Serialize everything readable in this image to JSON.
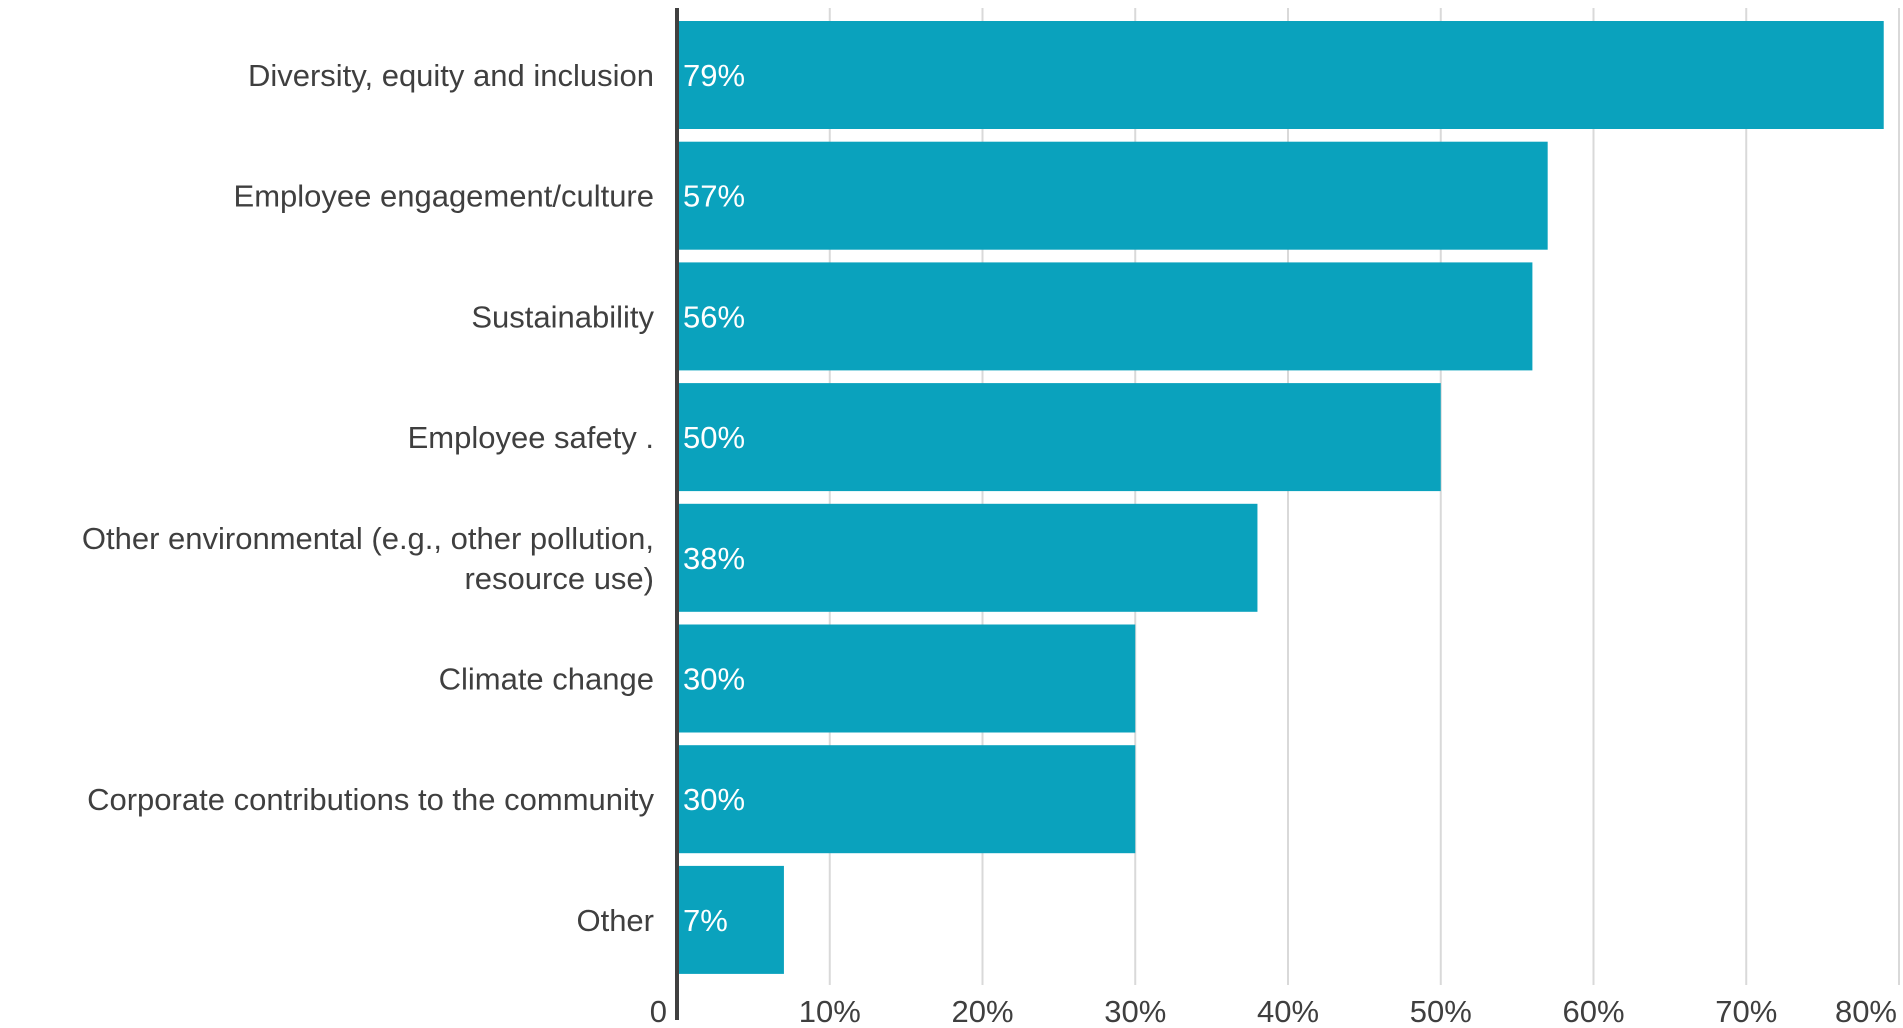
{
  "chart_data": {
    "type": "bar",
    "orientation": "horizontal",
    "categories": [
      "Diversity, equity and inclusion",
      "Employee engagement/culture",
      "Sustainability",
      "Employee safety .",
      "Other environmental (e.g., other pollution, resource use)",
      "Climate change",
      "Corporate contributions to the community",
      "Other"
    ],
    "category_label_lines": [
      [
        "Diversity, equity and inclusion"
      ],
      [
        "Employee engagement/culture"
      ],
      [
        "Sustainability"
      ],
      [
        "Employee safety ."
      ],
      [
        "Other environmental (e.g., other pollution,",
        "resource use)"
      ],
      [
        "Climate change"
      ],
      [
        "Corporate contributions to the community"
      ],
      [
        "Other"
      ]
    ],
    "values": [
      79,
      57,
      56,
      50,
      38,
      30,
      30,
      7
    ],
    "data_labels": [
      "79%",
      "57%",
      "56%",
      "50%",
      "38%",
      "30%",
      "30%",
      "7%"
    ],
    "xlim": [
      0,
      80
    ],
    "x_ticks": [
      0,
      10,
      20,
      30,
      40,
      50,
      60,
      70,
      80
    ],
    "x_tick_labels": [
      "0",
      "10%",
      "20%",
      "30%",
      "40%",
      "50%",
      "60%",
      "70%",
      "80%"
    ],
    "title": "",
    "xlabel": "",
    "ylabel": "",
    "grid": true,
    "colors": {
      "bar": "#0aa2bd",
      "grid": "#d9d9d9",
      "axis": "#404040",
      "text": "#3f3f3f",
      "value_text": "#ffffff"
    }
  }
}
